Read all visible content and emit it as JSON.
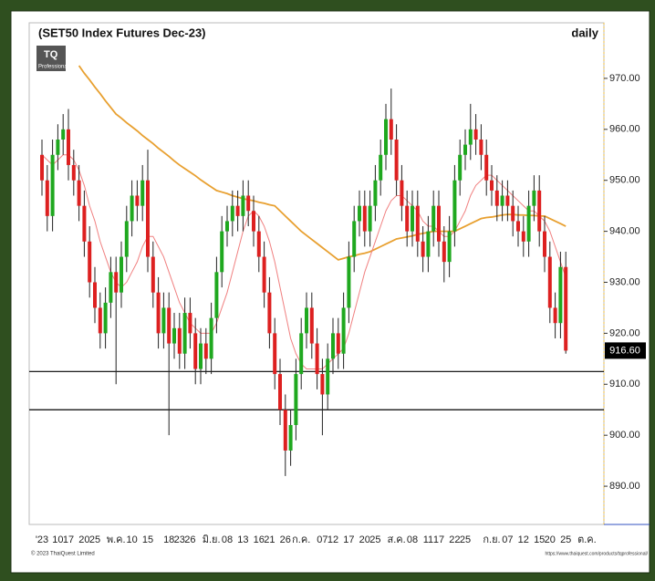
{
  "chart_data": {
    "type": "candlestick",
    "title": "(SET50 Index Futures Dec-23)",
    "period": "daily",
    "logo": "TQ",
    "logo_sub": "Professional",
    "copyright": "© 2023 ThaiQuest Limited",
    "url": "https://www.thaiquest.com/products/tqprofessional/",
    "up_color": "#1fa81f",
    "down_color": "#dd2020",
    "ylim": [
      882.5,
      980.9
    ],
    "yticks": [
      {
        "value": 970,
        "label": "970.00"
      },
      {
        "value": 960,
        "label": "960.00"
      },
      {
        "value": 950,
        "label": "950.00"
      },
      {
        "value": 940,
        "label": "940.00"
      },
      {
        "value": 930,
        "label": "930.00"
      },
      {
        "value": 920,
        "label": "920.00"
      },
      {
        "value": 910,
        "label": "910.00"
      },
      {
        "value": 900,
        "label": "900.00"
      },
      {
        "value": 890,
        "label": "890.00"
      }
    ],
    "last_price": {
      "value": 916.6,
      "label": "916.60"
    },
    "hlines": [
      912.5,
      905
    ],
    "categories": [
      "'23",
      null,
      null,
      "10",
      null,
      "17",
      null,
      null,
      "20",
      null,
      "25",
      null,
      null,
      null,
      "พ.ค.",
      null,
      null,
      "10",
      null,
      null,
      "15",
      null,
      null,
      null,
      "18",
      null,
      "23",
      null,
      "26",
      null,
      null,
      null,
      "มิ.ย.",
      null,
      null,
      "08",
      null,
      null,
      "13",
      null,
      null,
      "16",
      null,
      "21",
      null,
      null,
      "26",
      null,
      null,
      "ก.ค.",
      null,
      null,
      null,
      "07",
      null,
      "12",
      null,
      null,
      "17",
      null,
      null,
      "20",
      null,
      "25",
      null,
      null,
      null,
      "ส.ค.",
      null,
      null,
      "08",
      null,
      null,
      "11",
      null,
      "17",
      null,
      null,
      "22",
      null,
      "25",
      null,
      null,
      null,
      null,
      "ก.ย.",
      null,
      null,
      "07",
      null,
      null,
      "12",
      null,
      null,
      "15",
      null,
      "20",
      null,
      null,
      "25",
      null,
      null,
      null,
      "ต.ค."
    ],
    "open": [
      955,
      950,
      943,
      955,
      958,
      960,
      953,
      950,
      945,
      938,
      930,
      925,
      920,
      926,
      932,
      928,
      935,
      942,
      947,
      945,
      950,
      935,
      928,
      920,
      925,
      918,
      921,
      916,
      924,
      920,
      913,
      918,
      915,
      923,
      932,
      940,
      942,
      945,
      943,
      947,
      944,
      940,
      935,
      928,
      920,
      912,
      905,
      897,
      902,
      912,
      920,
      925,
      918,
      912,
      908,
      915,
      920,
      916,
      925,
      935,
      942,
      945,
      940,
      945,
      950,
      955,
      962,
      958,
      950,
      945,
      940,
      945,
      938,
      935,
      940,
      945,
      938,
      934,
      940,
      950,
      955,
      957,
      960,
      958,
      955,
      950,
      948,
      945,
      947,
      945,
      942,
      940,
      938,
      945,
      948,
      940,
      935,
      925,
      922,
      933,
      null,
      null,
      null,
      null
    ],
    "high": [
      958,
      953,
      958,
      961,
      963,
      964,
      956,
      953,
      948,
      941,
      933,
      928,
      929,
      935,
      935,
      938,
      945,
      950,
      950,
      953,
      956,
      938,
      931,
      928,
      928,
      924,
      924,
      927,
      927,
      923,
      921,
      921,
      926,
      935,
      943,
      945,
      948,
      948,
      950,
      950,
      947,
      943,
      938,
      931,
      923,
      915,
      908,
      905,
      915,
      923,
      928,
      928,
      921,
      915,
      918,
      923,
      923,
      928,
      938,
      945,
      948,
      948,
      948,
      953,
      958,
      965,
      968,
      961,
      953,
      948,
      948,
      948,
      941,
      943,
      948,
      948,
      941,
      943,
      953,
      958,
      960,
      965,
      963,
      961,
      958,
      953,
      951,
      950,
      950,
      948,
      945,
      943,
      948,
      951,
      951,
      943,
      938,
      928,
      936,
      936,
      null,
      null,
      null,
      null
    ],
    "low": [
      947,
      940,
      940,
      952,
      955,
      950,
      947,
      942,
      935,
      927,
      922,
      917,
      917,
      923,
      910,
      925,
      932,
      939,
      942,
      942,
      932,
      925,
      917,
      917,
      900,
      915,
      913,
      913,
      917,
      910,
      910,
      912,
      912,
      920,
      929,
      937,
      939,
      940,
      940,
      941,
      937,
      932,
      925,
      917,
      909,
      902,
      892,
      894,
      899,
      909,
      917,
      915,
      909,
      900,
      905,
      912,
      913,
      913,
      922,
      932,
      939,
      937,
      937,
      942,
      947,
      952,
      955,
      947,
      942,
      937,
      937,
      935,
      932,
      932,
      937,
      935,
      930,
      931,
      937,
      947,
      952,
      954,
      955,
      952,
      947,
      945,
      942,
      942,
      942,
      939,
      937,
      935,
      935,
      942,
      937,
      932,
      922,
      919,
      919,
      916,
      null,
      null,
      null,
      null
    ],
    "close": [
      950,
      943,
      955,
      958,
      960,
      953,
      950,
      945,
      938,
      930,
      925,
      920,
      926,
      932,
      928,
      935,
      942,
      947,
      945,
      950,
      935,
      928,
      920,
      925,
      918,
      921,
      916,
      924,
      920,
      913,
      918,
      915,
      923,
      932,
      940,
      942,
      945,
      943,
      947,
      944,
      940,
      935,
      928,
      920,
      912,
      905,
      897,
      902,
      912,
      920,
      925,
      918,
      912,
      908,
      915,
      920,
      916,
      925,
      935,
      942,
      945,
      940,
      945,
      950,
      955,
      962,
      958,
      950,
      945,
      940,
      945,
      938,
      935,
      940,
      945,
      938,
      934,
      940,
      950,
      955,
      957,
      960,
      958,
      955,
      950,
      948,
      945,
      947,
      945,
      942,
      940,
      938,
      945,
      948,
      940,
      935,
      925,
      922,
      933,
      916.6,
      null,
      null,
      null,
      null
    ],
    "moving_averages": [
      {
        "color": "#e8a030",
        "values": [
          null,
          null,
          null,
          null,
          null,
          null,
          null,
          972.5,
          971,
          969.7,
          968.3,
          967,
          965.6,
          964.3,
          963,
          962.2,
          961.3,
          960.5,
          959.7,
          958.8,
          958,
          957.2,
          956.3,
          955.5,
          954.7,
          953.8,
          953,
          952.3,
          951.6,
          950.9,
          950.1,
          949.4,
          948.7,
          948,
          947.7,
          947.4,
          947,
          946.7,
          946.4,
          946.2,
          946,
          945.7,
          945.5,
          945.2,
          945,
          944,
          943,
          942,
          941,
          940,
          939.2,
          938.4,
          937.6,
          936.8,
          936,
          935.2,
          934.4,
          934.7,
          935,
          935.2,
          935.5,
          935.7,
          936,
          936.5,
          937,
          937.5,
          938,
          938.5,
          938.7,
          938.9,
          939.1,
          939.4,
          939.6,
          939.8,
          940,
          940,
          940,
          940,
          940,
          940.5,
          941,
          941.5,
          942,
          942.5,
          942.7,
          942.8,
          943,
          943.2,
          943.3,
          943.3,
          943.2,
          943.2,
          943.1,
          943.1,
          943,
          943,
          942.5,
          942,
          941.5,
          941,
          null,
          null,
          null,
          null
        ]
      },
      {
        "color": "#f08080",
        "values": [
          955,
          954,
          953,
          954,
          955,
          955,
          954,
          952,
          949,
          945,
          942,
          938,
          935,
          932,
          930,
          929,
          930,
          932,
          934,
          937,
          939,
          939,
          937,
          935,
          932,
          929,
          926,
          924,
          922,
          921,
          920,
          920,
          920,
          922,
          925,
          928,
          932,
          936,
          940,
          943,
          944,
          943,
          941,
          938,
          934,
          929,
          924,
          919,
          916,
          914,
          913,
          913,
          913,
          913,
          914,
          915,
          916,
          917,
          920,
          924,
          928,
          932,
          935,
          938,
          941,
          944,
          946,
          947,
          947,
          946,
          945,
          944,
          942,
          941,
          941,
          940,
          939,
          939,
          940,
          942,
          944,
          947,
          949,
          950,
          951,
          951,
          950,
          949,
          948,
          947,
          946,
          945,
          944,
          944,
          943,
          942,
          940,
          937,
          934,
          931,
          null,
          null,
          null,
          null
        ]
      }
    ]
  }
}
